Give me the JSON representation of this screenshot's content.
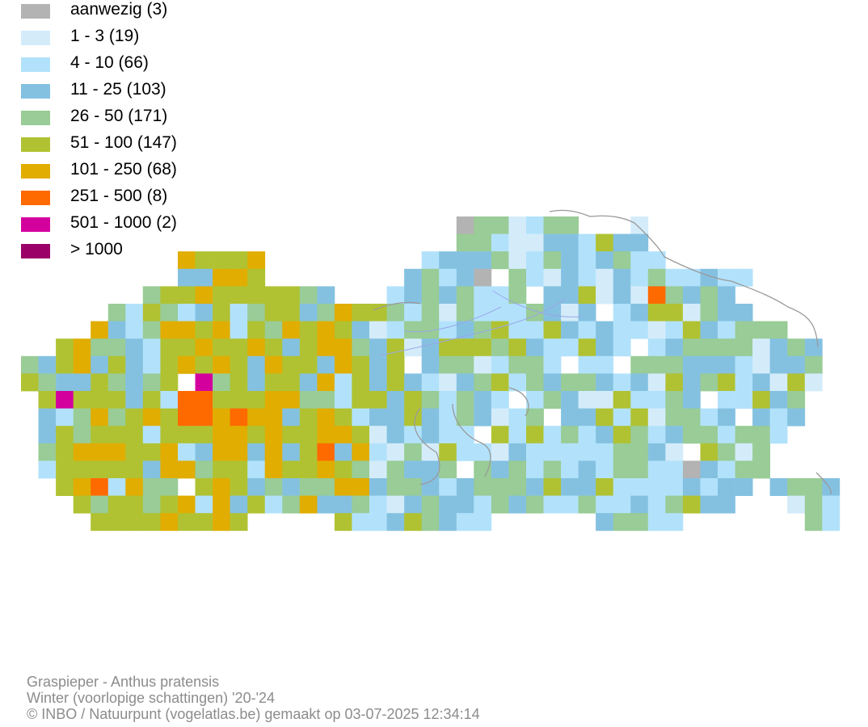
{
  "legend": [
    {
      "label": "aanwezig (3)",
      "color": "#b3b3b3"
    },
    {
      "label": "1 - 3 (19)",
      "color": "#d4ecfa"
    },
    {
      "label": "4 - 10 (66)",
      "color": "#b2e2fb"
    },
    {
      "label": "11 - 25 (103)",
      "color": "#84c1e1"
    },
    {
      "label": "26 - 50 (171)",
      "color": "#99cc96"
    },
    {
      "label": "51 - 100 (147)",
      "color": "#b0c232"
    },
    {
      "label": "101 - 250 (68)",
      "color": "#e0ad00"
    },
    {
      "label": "251 - 500 (8)",
      "color": "#ff6a00"
    },
    {
      "label": "501 - 1000 (2)",
      "color": "#d4009e"
    },
    {
      "label": "> 1000",
      "color": "#9a0068"
    }
  ],
  "caption": {
    "species": "Graspieper - Anthus pratensis",
    "period": "Winter (voorlopige schattingen) '20-'24",
    "credit": "© INBO / Natuurpunt (vogelatlas.be) gemaakt op 03-07-2025 12:34:14"
  }
}
